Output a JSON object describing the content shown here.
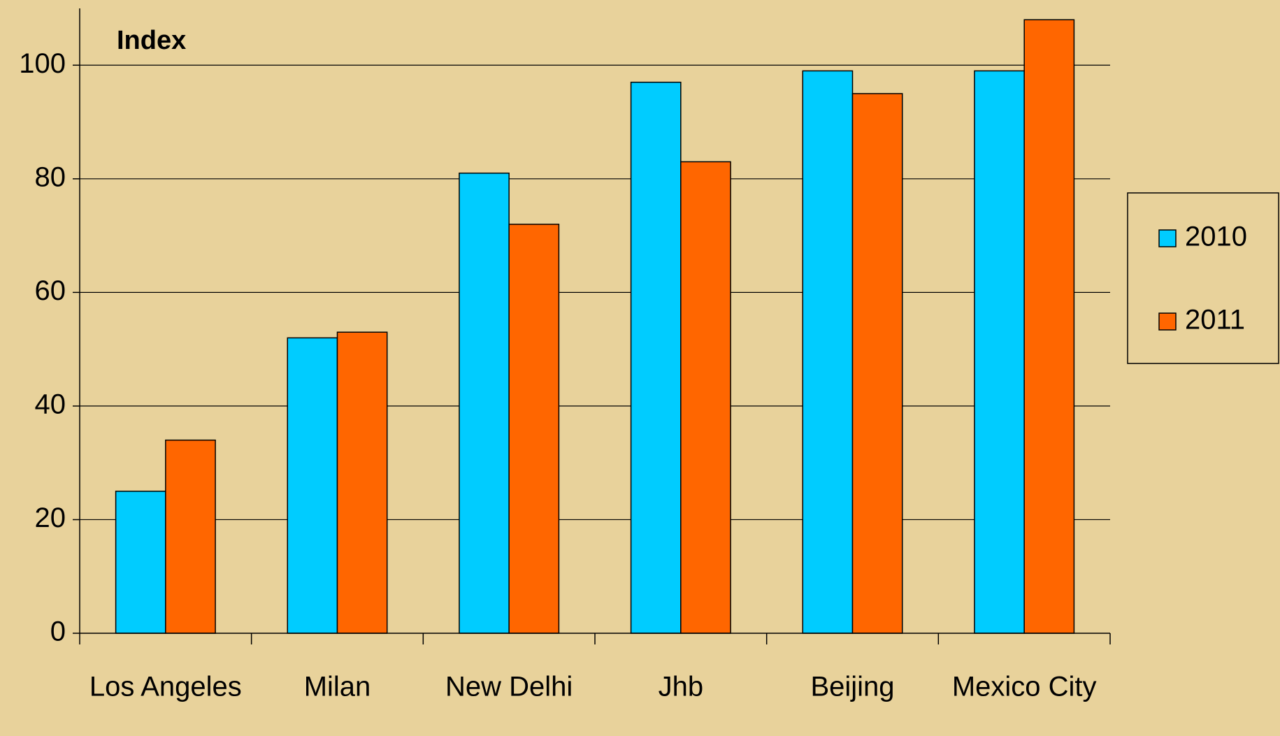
{
  "chart_data": {
    "type": "bar",
    "ylabel": "Index",
    "categories": [
      "Los Angeles",
      "Milan",
      "New Delhi",
      "Jhb",
      "Beijing",
      "Mexico City"
    ],
    "series": [
      {
        "name": "2010",
        "color": "#00CCFF",
        "values": [
          25,
          52,
          81,
          97,
          99,
          99
        ]
      },
      {
        "name": "2011",
        "color": "#FF6600",
        "values": [
          34,
          53,
          72,
          83,
          95,
          108
        ]
      }
    ],
    "ylim": [
      0,
      110
    ],
    "yticks": [
      0,
      20,
      40,
      60,
      80,
      100
    ],
    "grid": true,
    "legend": "right"
  }
}
